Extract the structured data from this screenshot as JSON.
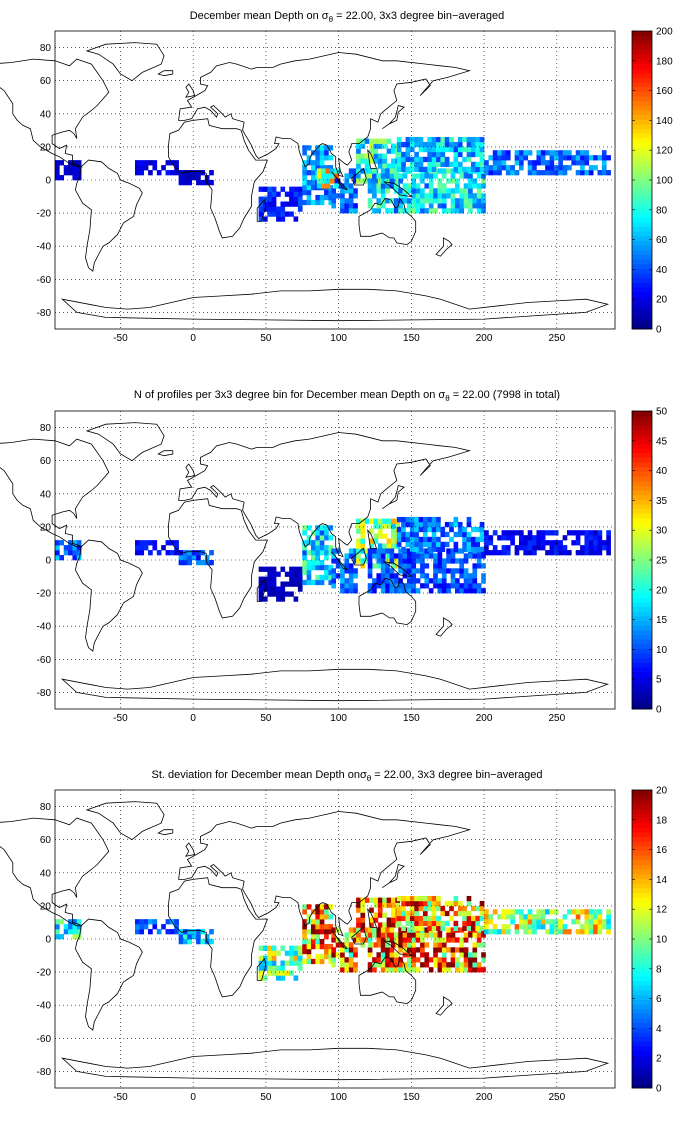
{
  "figure": {
    "colormap": "jet",
    "coastline_color": "#000000",
    "grid_style": "dotted"
  },
  "chart_data": [
    {
      "type": "heatmap",
      "title": "December mean Depth on σθ = 22.00, 3x3 degree bin−averaged",
      "title_parts": {
        "pre": "December mean Depth on σ",
        "sub": "θ",
        "post": " = 22.00, 3x3 degree bin−averaged"
      },
      "xlabel": "",
      "ylabel": "",
      "xlim": [
        -95,
        290
      ],
      "ylim": [
        -90,
        90
      ],
      "xticks": [
        -50,
        0,
        50,
        100,
        150,
        200,
        250
      ],
      "yticks": [
        -80,
        -60,
        -40,
        -20,
        0,
        20,
        40,
        60,
        80
      ],
      "grid": true,
      "colorbar": {
        "min": 0,
        "max": 200,
        "ticks": [
          0,
          20,
          40,
          60,
          80,
          100,
          120,
          140,
          160,
          180,
          200
        ]
      },
      "bin_size_deg": 3,
      "regions": [
        {
          "lon": [
            -95,
            -78
          ],
          "lat": [
            0,
            12
          ],
          "value": 15
        },
        {
          "lon": [
            -40,
            -10
          ],
          "lat": [
            3,
            12
          ],
          "value": 20
        },
        {
          "lon": [
            -10,
            12
          ],
          "lat": [
            -3,
            5
          ],
          "value": 18
        },
        {
          "lon": [
            45,
            75
          ],
          "lat": [
            -25,
            -5
          ],
          "value": 30
        },
        {
          "lon": [
            75,
            95
          ],
          "lat": [
            -15,
            20
          ],
          "value": 55
        },
        {
          "lon": [
            95,
            112
          ],
          "lat": [
            -20,
            5
          ],
          "value": 45
        },
        {
          "lon": [
            85,
            100
          ],
          "lat": [
            -5,
            5
          ],
          "value": 110
        },
        {
          "lon": [
            112,
            140
          ],
          "lat": [
            -5,
            25
          ],
          "value": 80
        },
        {
          "lon": [
            120,
            200
          ],
          "lat": [
            -20,
            5
          ],
          "value": 70
        },
        {
          "lon": [
            140,
            200
          ],
          "lat": [
            5,
            25
          ],
          "value": 65
        },
        {
          "lon": [
            200,
            285
          ],
          "lat": [
            3,
            18
          ],
          "value": 45
        }
      ]
    },
    {
      "type": "heatmap",
      "title": "N of profiles per 3x3 degree bin for December mean Depth on σθ = 22.00 (7998 in total)",
      "title_parts": {
        "pre": "N of profiles per 3x3 degree bin for December mean Depth on σ",
        "sub": "θ",
        "post": " = 22.00 (7998 in total)"
      },
      "xlabel": "",
      "ylabel": "",
      "xlim": [
        -95,
        290
      ],
      "ylim": [
        -90,
        90
      ],
      "xticks": [
        -50,
        0,
        50,
        100,
        150,
        200,
        250
      ],
      "yticks": [
        -80,
        -60,
        -40,
        -20,
        0,
        20,
        40,
        60,
        80
      ],
      "grid": true,
      "total_profiles": 7998,
      "colorbar": {
        "min": 0,
        "max": 50,
        "ticks": [
          0,
          5,
          10,
          15,
          20,
          25,
          30,
          35,
          40,
          45,
          50
        ]
      },
      "bin_size_deg": 3,
      "regions": [
        {
          "lon": [
            -95,
            -78
          ],
          "lat": [
            0,
            12
          ],
          "value": 12
        },
        {
          "lon": [
            -40,
            -10
          ],
          "lat": [
            3,
            12
          ],
          "value": 6
        },
        {
          "lon": [
            -10,
            12
          ],
          "lat": [
            -3,
            5
          ],
          "value": 10
        },
        {
          "lon": [
            45,
            75
          ],
          "lat": [
            -25,
            -5
          ],
          "value": 3
        },
        {
          "lon": [
            75,
            95
          ],
          "lat": [
            -15,
            20
          ],
          "value": 18
        },
        {
          "lon": [
            95,
            112
          ],
          "lat": [
            -20,
            5
          ],
          "value": 12
        },
        {
          "lon": [
            112,
            140
          ],
          "lat": [
            -5,
            25
          ],
          "value": 25
        },
        {
          "lon": [
            120,
            200
          ],
          "lat": [
            -20,
            5
          ],
          "value": 10
        },
        {
          "lon": [
            140,
            200
          ],
          "lat": [
            5,
            25
          ],
          "value": 12
        },
        {
          "lon": [
            200,
            285
          ],
          "lat": [
            3,
            18
          ],
          "value": 6
        }
      ]
    },
    {
      "type": "heatmap",
      "title": "St. deviation for December mean Depth onσθ = 22.00, 3x3 degree bin−averaged",
      "title_parts": {
        "pre": "St. deviation for December mean Depth onσ",
        "sub": "θ",
        "post": " = 22.00, 3x3 degree bin−averaged"
      },
      "xlabel": "",
      "ylabel": "",
      "xlim": [
        -95,
        290
      ],
      "ylim": [
        -90,
        90
      ],
      "xticks": [
        -50,
        0,
        50,
        100,
        150,
        200,
        250
      ],
      "yticks": [
        -80,
        -60,
        -40,
        -20,
        0,
        20,
        40,
        60,
        80
      ],
      "grid": true,
      "colorbar": {
        "min": 0,
        "max": 20,
        "ticks": [
          0,
          2,
          4,
          6,
          8,
          10,
          12,
          14,
          16,
          18,
          20
        ]
      },
      "bin_size_deg": 3,
      "regions": [
        {
          "lon": [
            -95,
            -78
          ],
          "lat": [
            0,
            12
          ],
          "value": 8
        },
        {
          "lon": [
            -40,
            -10
          ],
          "lat": [
            3,
            12
          ],
          "value": 4
        },
        {
          "lon": [
            -10,
            12
          ],
          "lat": [
            -3,
            5
          ],
          "value": 6
        },
        {
          "lon": [
            45,
            75
          ],
          "lat": [
            -25,
            -5
          ],
          "value": 10
        },
        {
          "lon": [
            75,
            95
          ],
          "lat": [
            -15,
            20
          ],
          "value": 15
        },
        {
          "lon": [
            95,
            112
          ],
          "lat": [
            -20,
            5
          ],
          "value": 14
        },
        {
          "lon": [
            112,
            140
          ],
          "lat": [
            -5,
            25
          ],
          "value": 17
        },
        {
          "lon": [
            120,
            200
          ],
          "lat": [
            -20,
            5
          ],
          "value": 15
        },
        {
          "lon": [
            140,
            200
          ],
          "lat": [
            5,
            25
          ],
          "value": 14
        },
        {
          "lon": [
            200,
            285
          ],
          "lat": [
            3,
            18
          ],
          "value": 11
        }
      ]
    }
  ]
}
